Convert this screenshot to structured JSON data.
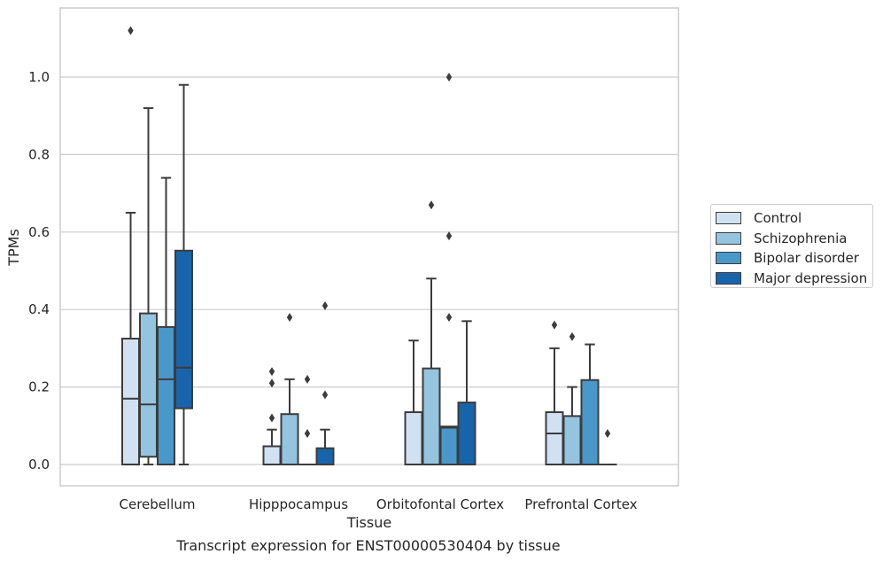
{
  "chart_data": {
    "type": "box",
    "xlabel": "Tissue",
    "ylabel": "TPMs",
    "caption": "Transcript expression for ENST00000530404 by tissue",
    "ylim": [
      -0.055,
      1.175
    ],
    "yticks": [
      "0.0",
      "0.2",
      "0.4",
      "0.6",
      "0.8",
      "1.0"
    ],
    "grid": true,
    "legend_position": "right",
    "categories": [
      "Cerebellum",
      "Hipppocampus",
      "Orbitofontal Cortex",
      "Prefrontal Cortex"
    ],
    "series": [
      {
        "name": "Control",
        "color": "#d0e1f2",
        "boxes": [
          {
            "whisker_low": 0.0,
            "q1": 0.0,
            "median": 0.17,
            "q3": 0.325,
            "whisker_high": 0.65,
            "outliers": [
              1.12
            ]
          },
          {
            "whisker_low": 0.0,
            "q1": 0.0,
            "median": 0.0,
            "q3": 0.047,
            "whisker_high": 0.09,
            "outliers": [
              0.12,
              0.21,
              0.24
            ]
          },
          {
            "whisker_low": 0.0,
            "q1": 0.0,
            "median": 0.0,
            "q3": 0.135,
            "whisker_high": 0.32,
            "outliers": []
          },
          {
            "whisker_low": 0.0,
            "q1": 0.0,
            "median": 0.08,
            "q3": 0.135,
            "whisker_high": 0.3,
            "outliers": [
              0.36
            ]
          }
        ]
      },
      {
        "name": "Schizophrenia",
        "color": "#94c4df",
        "boxes": [
          {
            "whisker_low": 0.0,
            "q1": 0.02,
            "median": 0.155,
            "q3": 0.39,
            "whisker_high": 0.92,
            "outliers": []
          },
          {
            "whisker_low": 0.0,
            "q1": 0.0,
            "median": 0.0,
            "q3": 0.13,
            "whisker_high": 0.22,
            "outliers": [
              0.38
            ]
          },
          {
            "whisker_low": 0.0,
            "q1": 0.0,
            "median": 0.0,
            "q3": 0.248,
            "whisker_high": 0.48,
            "outliers": [
              0.67
            ]
          },
          {
            "whisker_low": 0.0,
            "q1": 0.0,
            "median": 0.0,
            "q3": 0.125,
            "whisker_high": 0.2,
            "outliers": [
              0.33
            ]
          }
        ]
      },
      {
        "name": "Bipolar disorder",
        "color": "#4a98c9",
        "boxes": [
          {
            "whisker_low": 0.0,
            "q1": 0.0,
            "median": 0.22,
            "q3": 0.355,
            "whisker_high": 0.74,
            "outliers": []
          },
          {
            "whisker_low": 0.0,
            "q1": 0.0,
            "median": 0.0,
            "q3": 0.0,
            "whisker_high": 0.0,
            "outliers": [
              0.08,
              0.22
            ]
          },
          {
            "whisker_low": 0.0,
            "q1": 0.0,
            "median": 0.095,
            "q3": 0.098,
            "whisker_high": 0.098,
            "outliers": [
              0.38,
              0.59,
              1.0
            ]
          },
          {
            "whisker_low": 0.0,
            "q1": 0.0,
            "median": 0.0,
            "q3": 0.218,
            "whisker_high": 0.31,
            "outliers": []
          }
        ]
      },
      {
        "name": "Major depression",
        "color": "#1764ab",
        "boxes": [
          {
            "whisker_low": 0.0,
            "q1": 0.145,
            "median": 0.25,
            "q3": 0.552,
            "whisker_high": 0.98,
            "outliers": []
          },
          {
            "whisker_low": 0.0,
            "q1": 0.0,
            "median": 0.0,
            "q3": 0.042,
            "whisker_high": 0.09,
            "outliers": [
              0.18,
              0.41
            ]
          },
          {
            "whisker_low": 0.0,
            "q1": 0.0,
            "median": 0.0,
            "q3": 0.16,
            "whisker_high": 0.37,
            "outliers": []
          },
          {
            "whisker_low": 0.0,
            "q1": 0.0,
            "median": 0.0,
            "q3": 0.0,
            "whisker_high": 0.0,
            "outliers": [
              0.08
            ]
          }
        ]
      }
    ]
  }
}
